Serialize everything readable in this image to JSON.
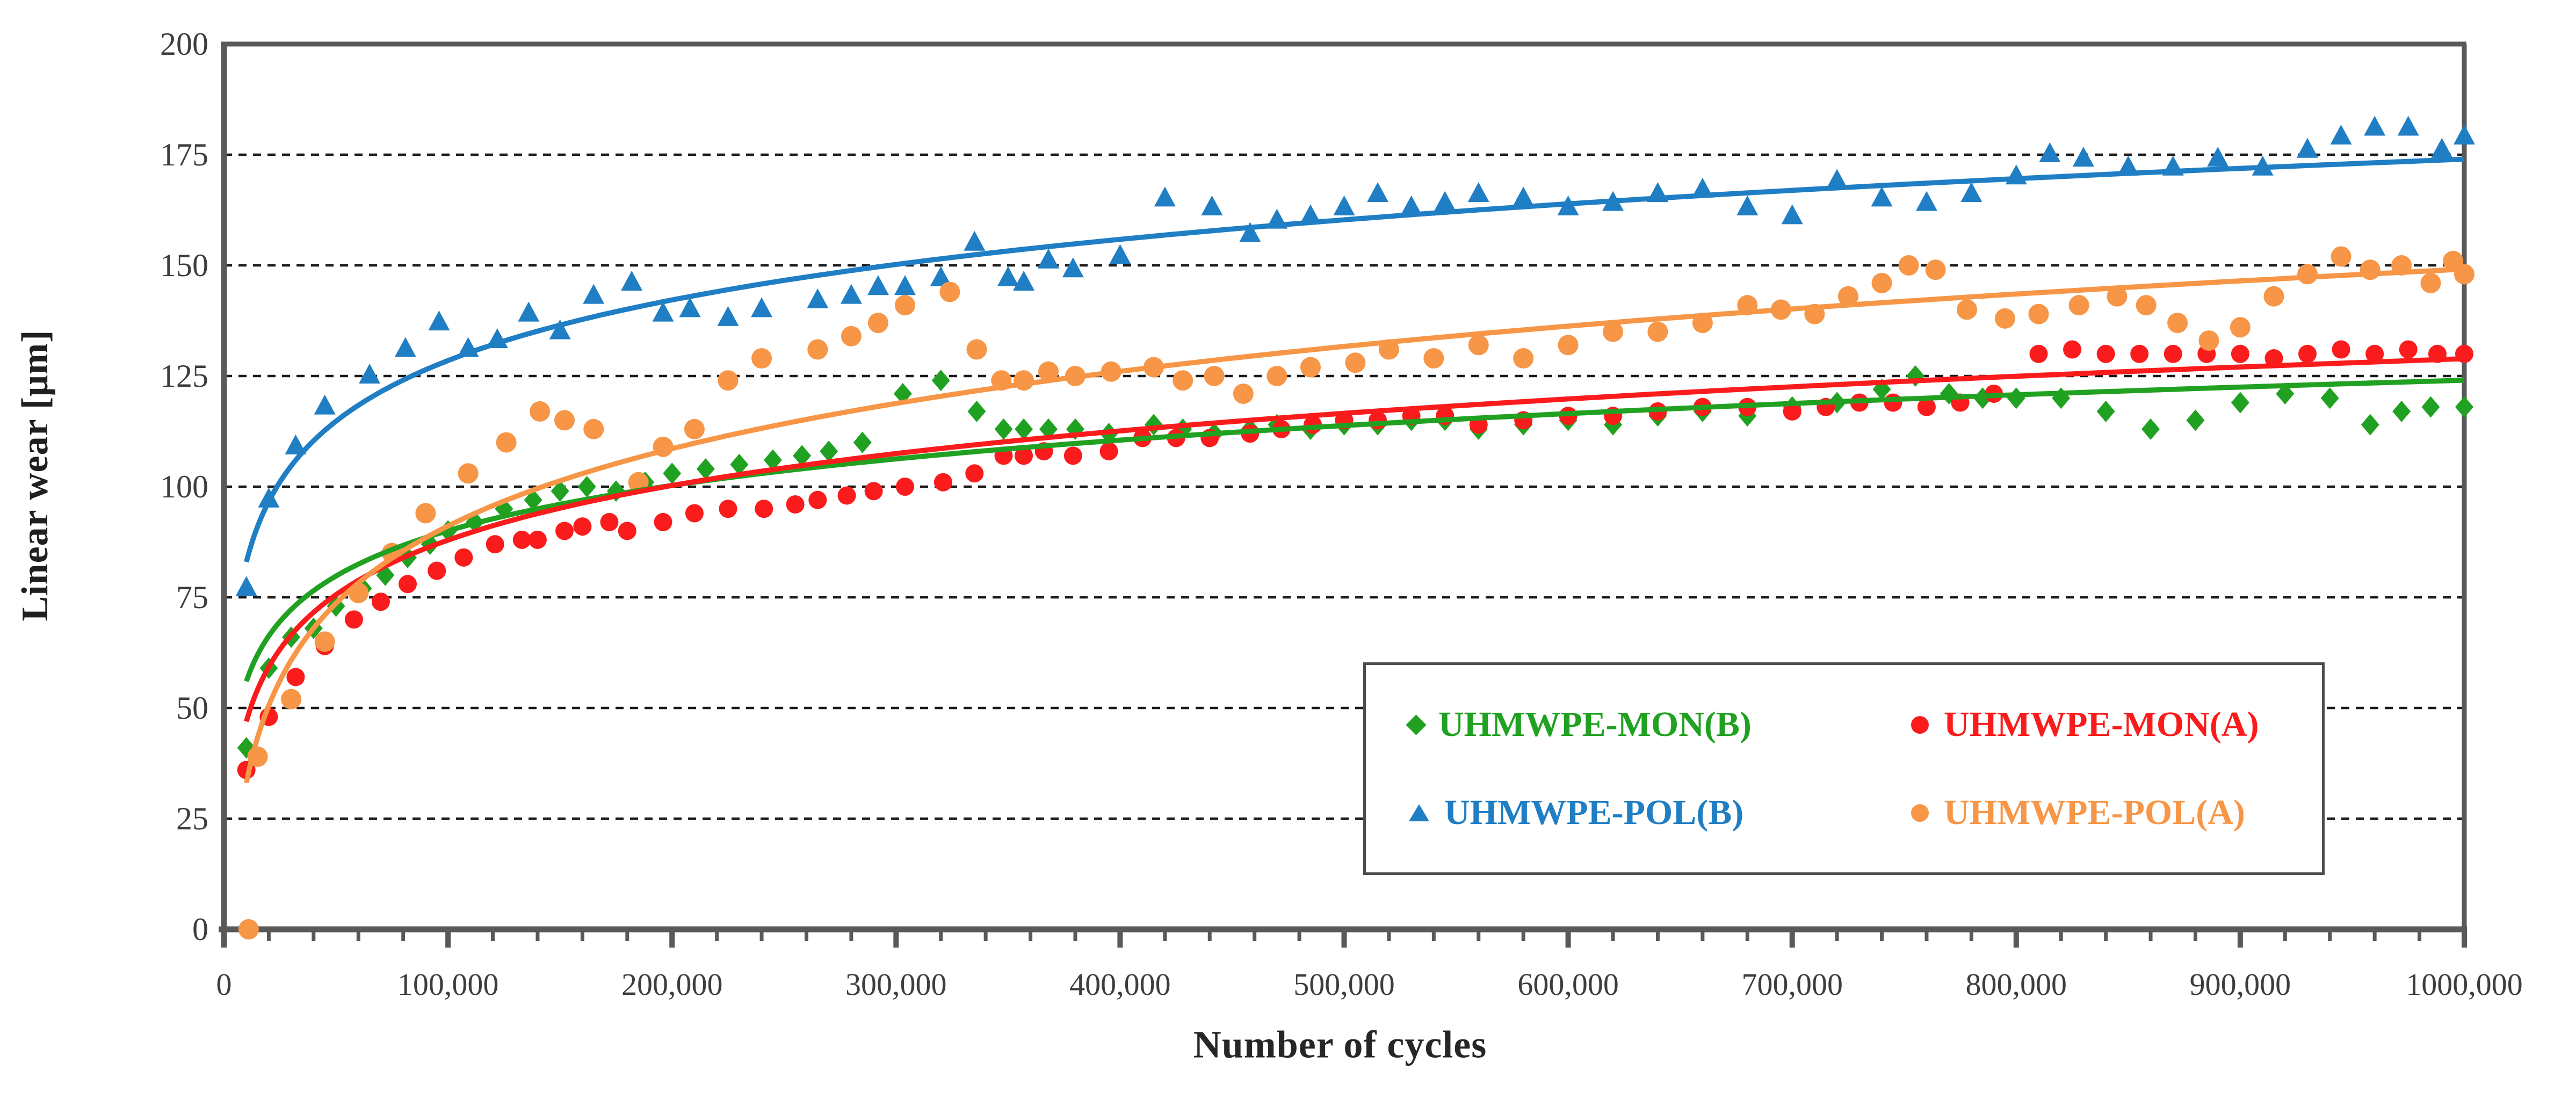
{
  "axes": {
    "y": {
      "title": "Linear wear [μm]",
      "min": 0,
      "max": 200,
      "tick_step": 25,
      "tick_labels": [
        "0",
        "25",
        "50",
        "75",
        "100",
        "125",
        "150",
        "175",
        "200"
      ]
    },
    "x": {
      "title": "Number of cycles",
      "min": 0,
      "max": 1000000,
      "major_step": 100000,
      "minor_step": 20000,
      "tick_labels": [
        "0",
        "100,000",
        "200,000",
        "300,000",
        "400,000",
        "500,000",
        "600,000",
        "700,000",
        "800,000",
        "900,000",
        "1000,000"
      ]
    }
  },
  "style_colors": {
    "frame": "#595959",
    "gridline": "#1a1a1a",
    "tick_label": "#3d3d3d",
    "background": "#ffffff"
  },
  "legend": {
    "items": [
      {
        "label": "UHMWPE-MON(B)",
        "color": "#21A121",
        "marker": "diamond"
      },
      {
        "label": "UHMWPE-MON(A)",
        "color": "#FA1C1C",
        "marker": "circle"
      },
      {
        "label": "UHMWPE-POL(B)",
        "color": "#1F7EC4",
        "marker": "triangle"
      },
      {
        "label": "UHMWPE-POL(A)",
        "color": "#F79646",
        "marker": "circle"
      }
    ]
  },
  "chart_data": {
    "type": "scatter",
    "xlabel": "Number of cycles",
    "ylabel": "Linear wear [μm]",
    "xlim": [
      0,
      1000000
    ],
    "ylim": [
      0,
      200
    ],
    "grid": "horizontal dashed every 25",
    "legend_position": "inside lower-right",
    "series": [
      {
        "name": "UHMWPE-MON(B)",
        "color": "#21A121",
        "marker": "diamond",
        "marker_w": 17,
        "marker_h": 20,
        "trend": {
          "type": "log",
          "a": 14.77,
          "b": -80,
          "note": "y = 14.77·ln(x) − 80"
        },
        "points": [
          [
            10000,
            41
          ],
          [
            20000,
            59
          ],
          [
            30000,
            66
          ],
          [
            40000,
            68
          ],
          [
            50000,
            73
          ],
          [
            62000,
            77
          ],
          [
            72000,
            80
          ],
          [
            82000,
            84
          ],
          [
            92000,
            87
          ],
          [
            100000,
            90
          ],
          [
            112000,
            92
          ],
          [
            125000,
            95
          ],
          [
            138000,
            97
          ],
          [
            150000,
            99
          ],
          [
            162000,
            100
          ],
          [
            175000,
            99
          ],
          [
            188000,
            101
          ],
          [
            200000,
            103
          ],
          [
            215000,
            104
          ],
          [
            230000,
            105
          ],
          [
            245000,
            106
          ],
          [
            258000,
            107
          ],
          [
            270000,
            108
          ],
          [
            285000,
            110
          ],
          [
            303000,
            121
          ],
          [
            320000,
            124
          ],
          [
            336000,
            117
          ],
          [
            348000,
            113
          ],
          [
            357000,
            113
          ],
          [
            368000,
            113
          ],
          [
            380000,
            113
          ],
          [
            395000,
            112
          ],
          [
            415000,
            114
          ],
          [
            428000,
            113
          ],
          [
            442000,
            112
          ],
          [
            458000,
            113
          ],
          [
            470000,
            114
          ],
          [
            485000,
            113
          ],
          [
            500000,
            114
          ],
          [
            515000,
            114
          ],
          [
            530000,
            115
          ],
          [
            545000,
            115
          ],
          [
            560000,
            113
          ],
          [
            580000,
            114
          ],
          [
            600000,
            115
          ],
          [
            620000,
            114
          ],
          [
            640000,
            116
          ],
          [
            660000,
            117
          ],
          [
            680000,
            116
          ],
          [
            700000,
            118
          ],
          [
            720000,
            119
          ],
          [
            740000,
            122
          ],
          [
            755000,
            125
          ],
          [
            770000,
            121
          ],
          [
            785000,
            120
          ],
          [
            800000,
            120
          ],
          [
            820000,
            120
          ],
          [
            840000,
            117
          ],
          [
            860000,
            113
          ],
          [
            880000,
            115
          ],
          [
            900000,
            119
          ],
          [
            920000,
            121
          ],
          [
            940000,
            120
          ],
          [
            958000,
            114
          ],
          [
            972000,
            117
          ],
          [
            985000,
            118
          ],
          [
            1000000,
            118
          ]
        ]
      },
      {
        "name": "UHMWPE-MON(A)",
        "color": "#FA1C1C",
        "marker": "circle",
        "marker_r": 17,
        "trend": {
          "type": "log",
          "a": 17.8,
          "b": -117,
          "note": "y = 17.8·ln(x) − 117"
        },
        "points": [
          [
            10000,
            36
          ],
          [
            20000,
            48
          ],
          [
            32000,
            57
          ],
          [
            45000,
            64
          ],
          [
            58000,
            70
          ],
          [
            70000,
            74
          ],
          [
            82000,
            78
          ],
          [
            95000,
            81
          ],
          [
            107000,
            84
          ],
          [
            121000,
            87
          ],
          [
            133000,
            88
          ],
          [
            140000,
            88
          ],
          [
            152000,
            90
          ],
          [
            160000,
            91
          ],
          [
            172000,
            92
          ],
          [
            180000,
            90
          ],
          [
            196000,
            92
          ],
          [
            210000,
            94
          ],
          [
            225000,
            95
          ],
          [
            241000,
            95
          ],
          [
            255000,
            96
          ],
          [
            265000,
            97
          ],
          [
            278000,
            98
          ],
          [
            290000,
            99
          ],
          [
            304000,
            100
          ],
          [
            321000,
            101
          ],
          [
            335000,
            103
          ],
          [
            348000,
            107
          ],
          [
            357000,
            107
          ],
          [
            366000,
            108
          ],
          [
            379000,
            107
          ],
          [
            395000,
            108
          ],
          [
            410000,
            111
          ],
          [
            425000,
            111
          ],
          [
            440000,
            111
          ],
          [
            458000,
            112
          ],
          [
            472000,
            113
          ],
          [
            486000,
            114
          ],
          [
            500000,
            115
          ],
          [
            515000,
            115
          ],
          [
            530000,
            116
          ],
          [
            545000,
            116
          ],
          [
            560000,
            114
          ],
          [
            580000,
            115
          ],
          [
            600000,
            116
          ],
          [
            620000,
            116
          ],
          [
            640000,
            117
          ],
          [
            660000,
            118
          ],
          [
            680000,
            118
          ],
          [
            700000,
            117
          ],
          [
            715000,
            118
          ],
          [
            730000,
            119
          ],
          [
            745000,
            119
          ],
          [
            760000,
            118
          ],
          [
            775000,
            119
          ],
          [
            790000,
            121
          ],
          [
            810000,
            130
          ],
          [
            825000,
            131
          ],
          [
            840000,
            130
          ],
          [
            855000,
            130
          ],
          [
            870000,
            130
          ],
          [
            885000,
            130
          ],
          [
            900000,
            130
          ],
          [
            915000,
            129
          ],
          [
            930000,
            130
          ],
          [
            945000,
            131
          ],
          [
            960000,
            130
          ],
          [
            975000,
            131
          ],
          [
            988000,
            130
          ],
          [
            1000000,
            130
          ]
        ]
      },
      {
        "name": "UHMWPE-POL(B)",
        "color": "#1F7EC4",
        "marker": "triangle",
        "marker_w": 20,
        "marker_h": 37,
        "trend": {
          "type": "log",
          "a": 19.76,
          "b": -99,
          "note": "y = 19.76·ln(x) − 99"
        },
        "points": [
          [
            10000,
            77
          ],
          [
            20000,
            97
          ],
          [
            32000,
            109
          ],
          [
            45000,
            118
          ],
          [
            65000,
            125
          ],
          [
            81000,
            131
          ],
          [
            96000,
            137
          ],
          [
            109000,
            131
          ],
          [
            122000,
            133
          ],
          [
            136000,
            139
          ],
          [
            150000,
            135
          ],
          [
            165000,
            143
          ],
          [
            182000,
            146
          ],
          [
            196000,
            139
          ],
          [
            208000,
            140
          ],
          [
            225000,
            138
          ],
          [
            240000,
            140
          ],
          [
            265000,
            142
          ],
          [
            280000,
            143
          ],
          [
            292000,
            145
          ],
          [
            304000,
            145
          ],
          [
            320000,
            147
          ],
          [
            335000,
            155
          ],
          [
            350000,
            147
          ],
          [
            357000,
            146
          ],
          [
            368000,
            151
          ],
          [
            379000,
            149
          ],
          [
            400000,
            152
          ],
          [
            420000,
            165
          ],
          [
            441000,
            163
          ],
          [
            458000,
            157
          ],
          [
            470000,
            160
          ],
          [
            485000,
            161
          ],
          [
            500000,
            163
          ],
          [
            515000,
            166
          ],
          [
            530000,
            163
          ],
          [
            545000,
            164
          ],
          [
            560000,
            166
          ],
          [
            580000,
            165
          ],
          [
            600000,
            163
          ],
          [
            620000,
            164
          ],
          [
            640000,
            166
          ],
          [
            660000,
            167
          ],
          [
            680000,
            163
          ],
          [
            700000,
            161
          ],
          [
            720000,
            169
          ],
          [
            740000,
            165
          ],
          [
            760000,
            164
          ],
          [
            780000,
            166
          ],
          [
            800000,
            170
          ],
          [
            815000,
            175
          ],
          [
            830000,
            174
          ],
          [
            850000,
            172
          ],
          [
            870000,
            172
          ],
          [
            890000,
            174
          ],
          [
            910000,
            172
          ],
          [
            930000,
            176
          ],
          [
            945000,
            179
          ],
          [
            960000,
            181
          ],
          [
            975000,
            181
          ],
          [
            990000,
            176
          ],
          [
            1000000,
            179
          ]
        ]
      },
      {
        "name": "UHMWPE-POL(A)",
        "color": "#F79646",
        "marker": "circle",
        "marker_r": 19,
        "trend": {
          "type": "log",
          "a": 25.2,
          "b": -199,
          "note": "y = 25.2·ln(x) − 199"
        },
        "points": [
          [
            11000,
            0
          ],
          [
            15000,
            39
          ],
          [
            30000,
            52
          ],
          [
            45000,
            65
          ],
          [
            60000,
            76
          ],
          [
            75000,
            85
          ],
          [
            90000,
            94
          ],
          [
            109000,
            103
          ],
          [
            126000,
            110
          ],
          [
            141000,
            117
          ],
          [
            152000,
            115
          ],
          [
            165000,
            113
          ],
          [
            185000,
            101
          ],
          [
            196000,
            109
          ],
          [
            210000,
            113
          ],
          [
            225000,
            124
          ],
          [
            240000,
            129
          ],
          [
            265000,
            131
          ],
          [
            280000,
            134
          ],
          [
            292000,
            137
          ],
          [
            304000,
            141
          ],
          [
            324000,
            144
          ],
          [
            336000,
            131
          ],
          [
            347000,
            124
          ],
          [
            357000,
            124
          ],
          [
            368000,
            126
          ],
          [
            380000,
            125
          ],
          [
            396000,
            126
          ],
          [
            415000,
            127
          ],
          [
            428000,
            124
          ],
          [
            442000,
            125
          ],
          [
            455000,
            121
          ],
          [
            470000,
            125
          ],
          [
            485000,
            127
          ],
          [
            505000,
            128
          ],
          [
            520000,
            131
          ],
          [
            540000,
            129
          ],
          [
            560000,
            132
          ],
          [
            580000,
            129
          ],
          [
            600000,
            132
          ],
          [
            620000,
            135
          ],
          [
            640000,
            135
          ],
          [
            660000,
            137
          ],
          [
            680000,
            141
          ],
          [
            695000,
            140
          ],
          [
            710000,
            139
          ],
          [
            725000,
            143
          ],
          [
            740000,
            146
          ],
          [
            752000,
            150
          ],
          [
            764000,
            149
          ],
          [
            778000,
            140
          ],
          [
            795000,
            138
          ],
          [
            810000,
            139
          ],
          [
            828000,
            141
          ],
          [
            845000,
            143
          ],
          [
            858000,
            141
          ],
          [
            872000,
            137
          ],
          [
            886000,
            133
          ],
          [
            900000,
            136
          ],
          [
            915000,
            143
          ],
          [
            930000,
            148
          ],
          [
            945000,
            152
          ],
          [
            958000,
            149
          ],
          [
            972000,
            150
          ],
          [
            985000,
            146
          ],
          [
            995000,
            151
          ],
          [
            1000000,
            148
          ]
        ]
      }
    ]
  }
}
